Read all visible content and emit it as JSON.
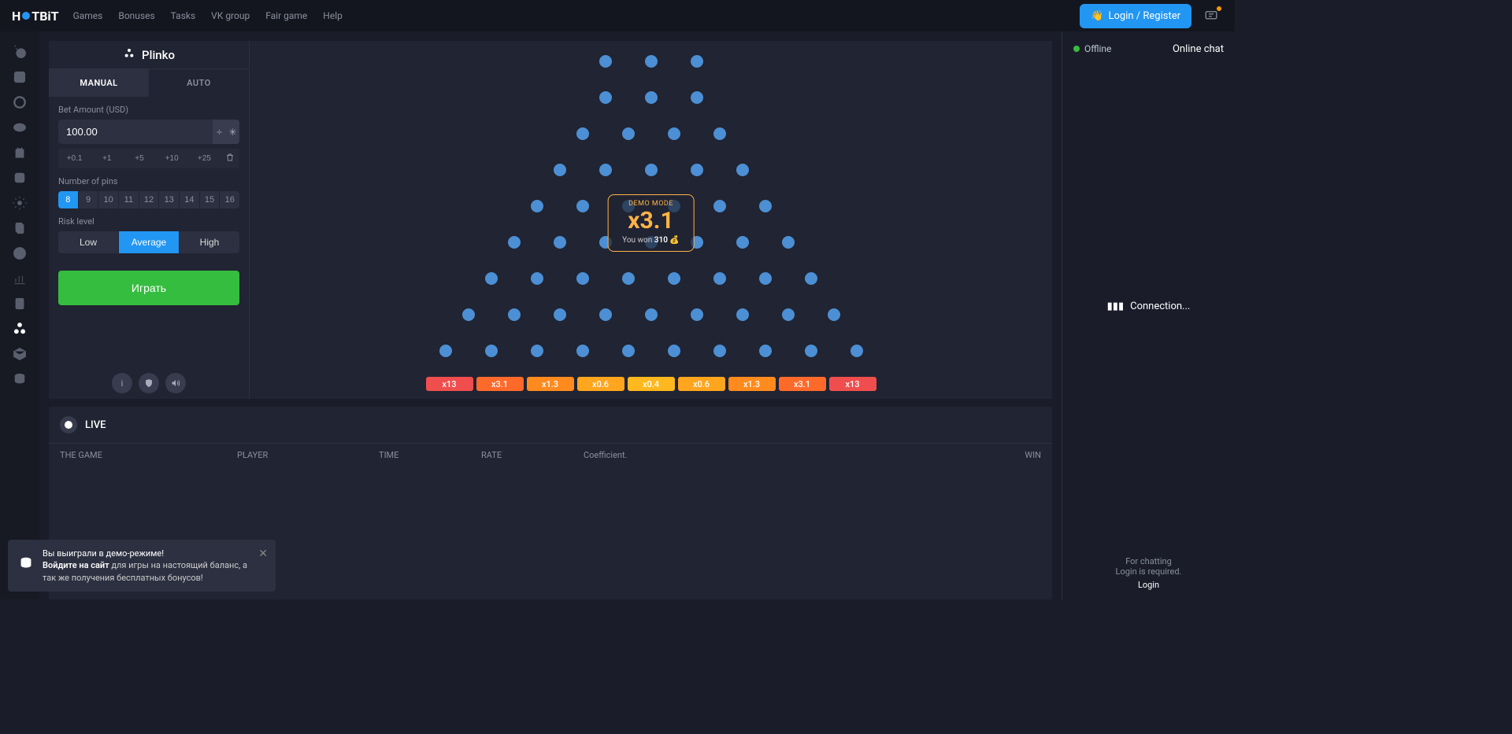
{
  "nav": {
    "logo_pre": "H",
    "logo_post": "TBiT",
    "links": [
      "Games",
      "Bonuses",
      "Tasks",
      "VK group",
      "Fair game",
      "Help"
    ],
    "login_label": "Login / Register"
  },
  "sidebar_icons": [
    "bomb",
    "dice",
    "ring",
    "coin",
    "tower",
    "slot",
    "gear",
    "cards",
    "wheel",
    "chart",
    "updown",
    "plinko",
    "box",
    "stack"
  ],
  "sidebar_active_index": 11,
  "controls": {
    "title": "Plinko",
    "tabs": {
      "manual": "MANUAL",
      "auto": "AUTO"
    },
    "active_tab": "manual",
    "bet_label": "Bet Amount (USD)",
    "bet_value": "100.00",
    "op_div": "÷",
    "op_mul": "✳",
    "quick": [
      "+0.1",
      "+1",
      "+5",
      "+10",
      "+25"
    ],
    "pins_label": "Number of pins",
    "pins": [
      "8",
      "9",
      "10",
      "11",
      "12",
      "13",
      "14",
      "15",
      "16"
    ],
    "pin_selected": 0,
    "risk_label": "Risk level",
    "risk": [
      "Low",
      "Average",
      "High"
    ],
    "risk_selected": 1,
    "play_label": "Играть"
  },
  "board": {
    "rows": [
      3,
      3,
      4,
      5,
      6,
      7,
      8,
      9,
      10
    ],
    "peg_color": "#4c8fd4",
    "result": {
      "demo": "DEMO MODE",
      "multiplier": "x3.1",
      "won_prefix": "You won",
      "won_amount": "310"
    },
    "multipliers": [
      {
        "label": "x13",
        "color": "#f04e4e"
      },
      {
        "label": "x3.1",
        "color": "#ff6a2b"
      },
      {
        "label": "x1.3",
        "color": "#ff8a1e"
      },
      {
        "label": "x0.6",
        "color": "#ffa51e"
      },
      {
        "label": "x0.4",
        "color": "#ffb81e"
      },
      {
        "label": "x0.6",
        "color": "#ffa51e"
      },
      {
        "label": "x1.3",
        "color": "#ff8a1e"
      },
      {
        "label": "x3.1",
        "color": "#ff6a2b"
      },
      {
        "label": "x13",
        "color": "#f04e4e"
      }
    ]
  },
  "live": {
    "label": "LIVE",
    "columns": {
      "game": "THE GAME",
      "player": "PLAYER",
      "time": "TIME",
      "rate": "RATE",
      "coef": "Coefficient.",
      "win": "WIN"
    }
  },
  "chat": {
    "status": "Offline",
    "title": "Online chat",
    "connection": "Connection...",
    "footer1": "For chatting",
    "footer2": "Login is required.",
    "login": "Login"
  },
  "toast": {
    "line1": "Вы выиграли в демо-режиме!",
    "line2a": "Войдите на сайт",
    "line2b": " для игры на настоящий баланс, а так же получения бесплатных бонусов!"
  }
}
